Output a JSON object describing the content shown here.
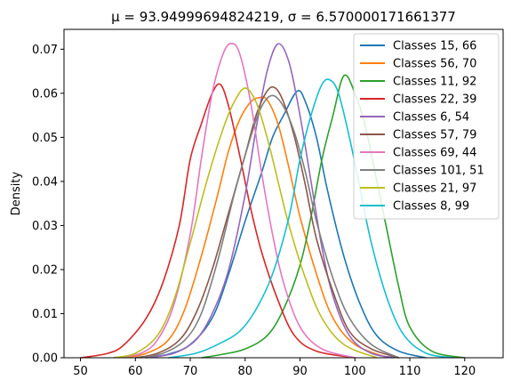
{
  "chart_data": {
    "type": "line",
    "title": "μ = 93.94999694824219, σ = 6.570000171661377",
    "xlabel": "",
    "ylabel": "Density",
    "xlim": [
      47,
      127
    ],
    "ylim": [
      0,
      0.0745
    ],
    "xticks": [
      "50",
      "60",
      "70",
      "80",
      "90",
      "100",
      "110",
      "120"
    ],
    "xtick_values": [
      50,
      60,
      70,
      80,
      90,
      100,
      110,
      120
    ],
    "yticks": [
      "0.00",
      "0.01",
      "0.02",
      "0.03",
      "0.04",
      "0.05",
      "0.06",
      "0.07"
    ],
    "ytick_values": [
      0,
      0.01,
      0.02,
      0.03,
      0.04,
      0.05,
      0.06,
      0.07
    ],
    "grid": false,
    "legend_position": "top-right",
    "series": [
      {
        "name": "Classes 15, 66",
        "color": "#1f77b4",
        "points": [
          [
            62,
            0
          ],
          [
            66,
            0.0008
          ],
          [
            70,
            0.003
          ],
          [
            74,
            0.009
          ],
          [
            77,
            0.019
          ],
          [
            80,
            0.031
          ],
          [
            83,
            0.042
          ],
          [
            85,
            0.05
          ],
          [
            87,
            0.055
          ],
          [
            89.5,
            0.0605
          ],
          [
            91,
            0.058
          ],
          [
            93,
            0.05
          ],
          [
            95,
            0.038
          ],
          [
            98,
            0.023
          ],
          [
            101,
            0.012
          ],
          [
            104,
            0.005
          ],
          [
            108,
            0.0015
          ],
          [
            113,
            0
          ]
        ]
      },
      {
        "name": "Classes 56, 70",
        "color": "#ff7f0e",
        "points": [
          [
            58,
            0
          ],
          [
            62,
            0.001
          ],
          [
            66,
            0.004
          ],
          [
            69,
            0.011
          ],
          [
            72,
            0.023
          ],
          [
            75,
            0.037
          ],
          [
            77,
            0.047
          ],
          [
            79,
            0.054
          ],
          [
            81,
            0.058
          ],
          [
            82.5,
            0.059
          ],
          [
            84,
            0.0585
          ],
          [
            86,
            0.053
          ],
          [
            88,
            0.043
          ],
          [
            90,
            0.032
          ],
          [
            93,
            0.019
          ],
          [
            96,
            0.009
          ],
          [
            100,
            0.003
          ],
          [
            106,
            0
          ]
        ]
      },
      {
        "name": "Classes 11, 92",
        "color": "#2ca02c",
        "points": [
          [
            72,
            0
          ],
          [
            76,
            0.0008
          ],
          [
            80,
            0.002
          ],
          [
            84,
            0.005
          ],
          [
            87,
            0.011
          ],
          [
            90,
            0.021
          ],
          [
            92,
            0.032
          ],
          [
            94,
            0.045
          ],
          [
            96,
            0.055
          ],
          [
            98,
            0.064
          ],
          [
            100,
            0.06
          ],
          [
            102,
            0.052
          ],
          [
            104,
            0.04
          ],
          [
            106,
            0.028
          ],
          [
            108,
            0.016
          ],
          [
            110,
            0.007
          ],
          [
            114,
            0.0015
          ],
          [
            120,
            0
          ]
        ]
      },
      {
        "name": "Classes 22, 39",
        "color": "#d62728",
        "points": [
          [
            50,
            0
          ],
          [
            55,
            0.001
          ],
          [
            58,
            0.003
          ],
          [
            62,
            0.009
          ],
          [
            65,
            0.017
          ],
          [
            68,
            0.03
          ],
          [
            70,
            0.045
          ],
          [
            72,
            0.053
          ],
          [
            74,
            0.06
          ],
          [
            75.5,
            0.062
          ],
          [
            77,
            0.057
          ],
          [
            79,
            0.046
          ],
          [
            81,
            0.034
          ],
          [
            83,
            0.024
          ],
          [
            86,
            0.013
          ],
          [
            89,
            0.005
          ],
          [
            93,
            0.0015
          ],
          [
            100,
            0
          ]
        ]
      },
      {
        "name": "Classes 6, 54",
        "color": "#9467bd",
        "points": [
          [
            62,
            0
          ],
          [
            67,
            0.001
          ],
          [
            71,
            0.004
          ],
          [
            74,
            0.01
          ],
          [
            77,
            0.02
          ],
          [
            80,
            0.037
          ],
          [
            82,
            0.052
          ],
          [
            84,
            0.065
          ],
          [
            86,
            0.0712
          ],
          [
            88,
            0.067
          ],
          [
            90,
            0.055
          ],
          [
            92,
            0.04
          ],
          [
            94,
            0.025
          ],
          [
            96,
            0.014
          ],
          [
            99,
            0.005
          ],
          [
            103,
            0.001
          ],
          [
            108,
            0
          ]
        ]
      },
      {
        "name": "Classes 57, 79",
        "color": "#8c564b",
        "points": [
          [
            60,
            0
          ],
          [
            64,
            0.001
          ],
          [
            68,
            0.004
          ],
          [
            71,
            0.01
          ],
          [
            74,
            0.02
          ],
          [
            77,
            0.033
          ],
          [
            80,
            0.046
          ],
          [
            82,
            0.055
          ],
          [
            84,
            0.0605
          ],
          [
            85.5,
            0.0612
          ],
          [
            87,
            0.058
          ],
          [
            89,
            0.05
          ],
          [
            91,
            0.039
          ],
          [
            93,
            0.027
          ],
          [
            96,
            0.015
          ],
          [
            99,
            0.006
          ],
          [
            103,
            0.002
          ],
          [
            108,
            0
          ]
        ]
      },
      {
        "name": "Classes 69, 44",
        "color": "#e377c2",
        "points": [
          [
            57,
            0
          ],
          [
            61,
            0.001
          ],
          [
            64,
            0.004
          ],
          [
            67,
            0.012
          ],
          [
            70,
            0.028
          ],
          [
            72,
            0.045
          ],
          [
            74,
            0.06
          ],
          [
            76,
            0.069
          ],
          [
            77.5,
            0.0713
          ],
          [
            79,
            0.069
          ],
          [
            81,
            0.058
          ],
          [
            83,
            0.042
          ],
          [
            85,
            0.028
          ],
          [
            87,
            0.017
          ],
          [
            90,
            0.007
          ],
          [
            94,
            0.002
          ],
          [
            100,
            0
          ]
        ]
      },
      {
        "name": "Classes 101, 51",
        "color": "#7f7f7f",
        "points": [
          [
            61,
            0
          ],
          [
            65,
            0.001
          ],
          [
            69,
            0.004
          ],
          [
            72,
            0.01
          ],
          [
            75,
            0.022
          ],
          [
            78,
            0.037
          ],
          [
            81,
            0.05
          ],
          [
            83,
            0.057
          ],
          [
            85,
            0.0595
          ],
          [
            87,
            0.057
          ],
          [
            89,
            0.051
          ],
          [
            91,
            0.042
          ],
          [
            93,
            0.031
          ],
          [
            96,
            0.018
          ],
          [
            99,
            0.009
          ],
          [
            103,
            0.003
          ],
          [
            108,
            0
          ]
        ]
      },
      {
        "name": "Classes 21, 97",
        "color": "#bcbd22",
        "points": [
          [
            56,
            0
          ],
          [
            60,
            0.001
          ],
          [
            64,
            0.005
          ],
          [
            67,
            0.013
          ],
          [
            70,
            0.026
          ],
          [
            73,
            0.04
          ],
          [
            76,
            0.052
          ],
          [
            78,
            0.058
          ],
          [
            80,
            0.0612
          ],
          [
            82,
            0.058
          ],
          [
            84,
            0.05
          ],
          [
            86,
            0.04
          ],
          [
            88,
            0.03
          ],
          [
            91,
            0.018
          ],
          [
            94,
            0.009
          ],
          [
            98,
            0.003
          ],
          [
            104,
            0
          ]
        ]
      },
      {
        "name": "Classes 8, 99",
        "color": "#17becf",
        "points": [
          [
            66,
            0
          ],
          [
            71,
            0.001
          ],
          [
            75,
            0.003
          ],
          [
            79,
            0.006
          ],
          [
            82,
            0.011
          ],
          [
            85,
            0.019
          ],
          [
            88,
            0.032
          ],
          [
            90,
            0.045
          ],
          [
            92,
            0.055
          ],
          [
            94,
            0.062
          ],
          [
            95.5,
            0.063
          ],
          [
            97,
            0.06
          ],
          [
            99,
            0.05
          ],
          [
            101,
            0.038
          ],
          [
            103,
            0.026
          ],
          [
            106,
            0.013
          ],
          [
            109,
            0.005
          ],
          [
            113,
            0.001
          ],
          [
            118,
            0
          ]
        ]
      }
    ]
  }
}
